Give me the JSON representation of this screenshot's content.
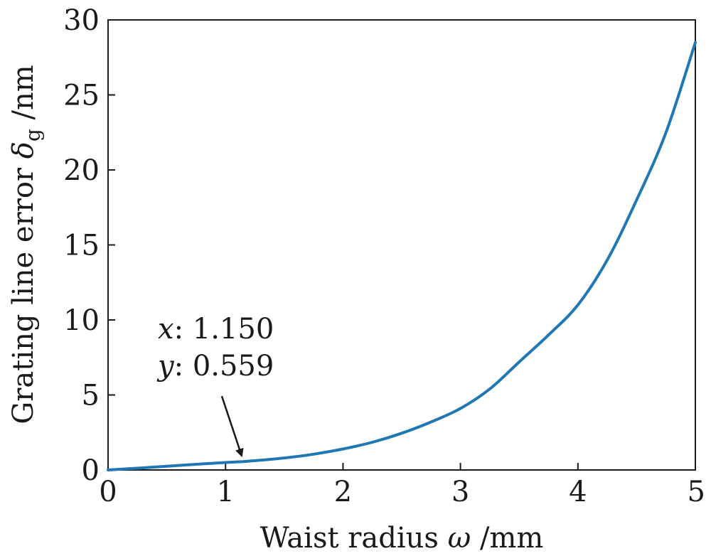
{
  "chart_data": {
    "type": "line",
    "xlabel": {
      "prefix": "Waist radius ",
      "symbol": "ω",
      "suffix": " /mm"
    },
    "ylabel": {
      "prefix": "Grating line error ",
      "symbol": "δ",
      "subscript": "g",
      "suffix": " /nm"
    },
    "xlim": [
      0,
      5
    ],
    "ylim": [
      0,
      30
    ],
    "xticks": [
      0,
      1,
      2,
      3,
      4,
      5
    ],
    "yticks": [
      0,
      5,
      10,
      15,
      20,
      25,
      30
    ],
    "grid": false,
    "series": [
      {
        "color": "#1f77b4",
        "x": [
          0,
          0.25,
          0.5,
          0.75,
          1.0,
          1.15,
          1.25,
          1.5,
          1.75,
          2.0,
          2.25,
          2.5,
          2.75,
          3.0,
          3.25,
          3.5,
          3.75,
          4.0,
          4.25,
          4.5,
          4.75,
          5.0
        ],
        "y": [
          0,
          0.12,
          0.25,
          0.38,
          0.5,
          0.559,
          0.62,
          0.8,
          1.05,
          1.4,
          1.85,
          2.45,
          3.2,
          4.1,
          5.4,
          7.2,
          9.0,
          11.0,
          14.0,
          18.0,
          22.5,
          28.5
        ]
      }
    ],
    "annotation": {
      "x_label": "x",
      "x_value": "1.150",
      "y_label": "y",
      "y_value": "0.559",
      "point": [
        1.15,
        0.559
      ]
    }
  }
}
